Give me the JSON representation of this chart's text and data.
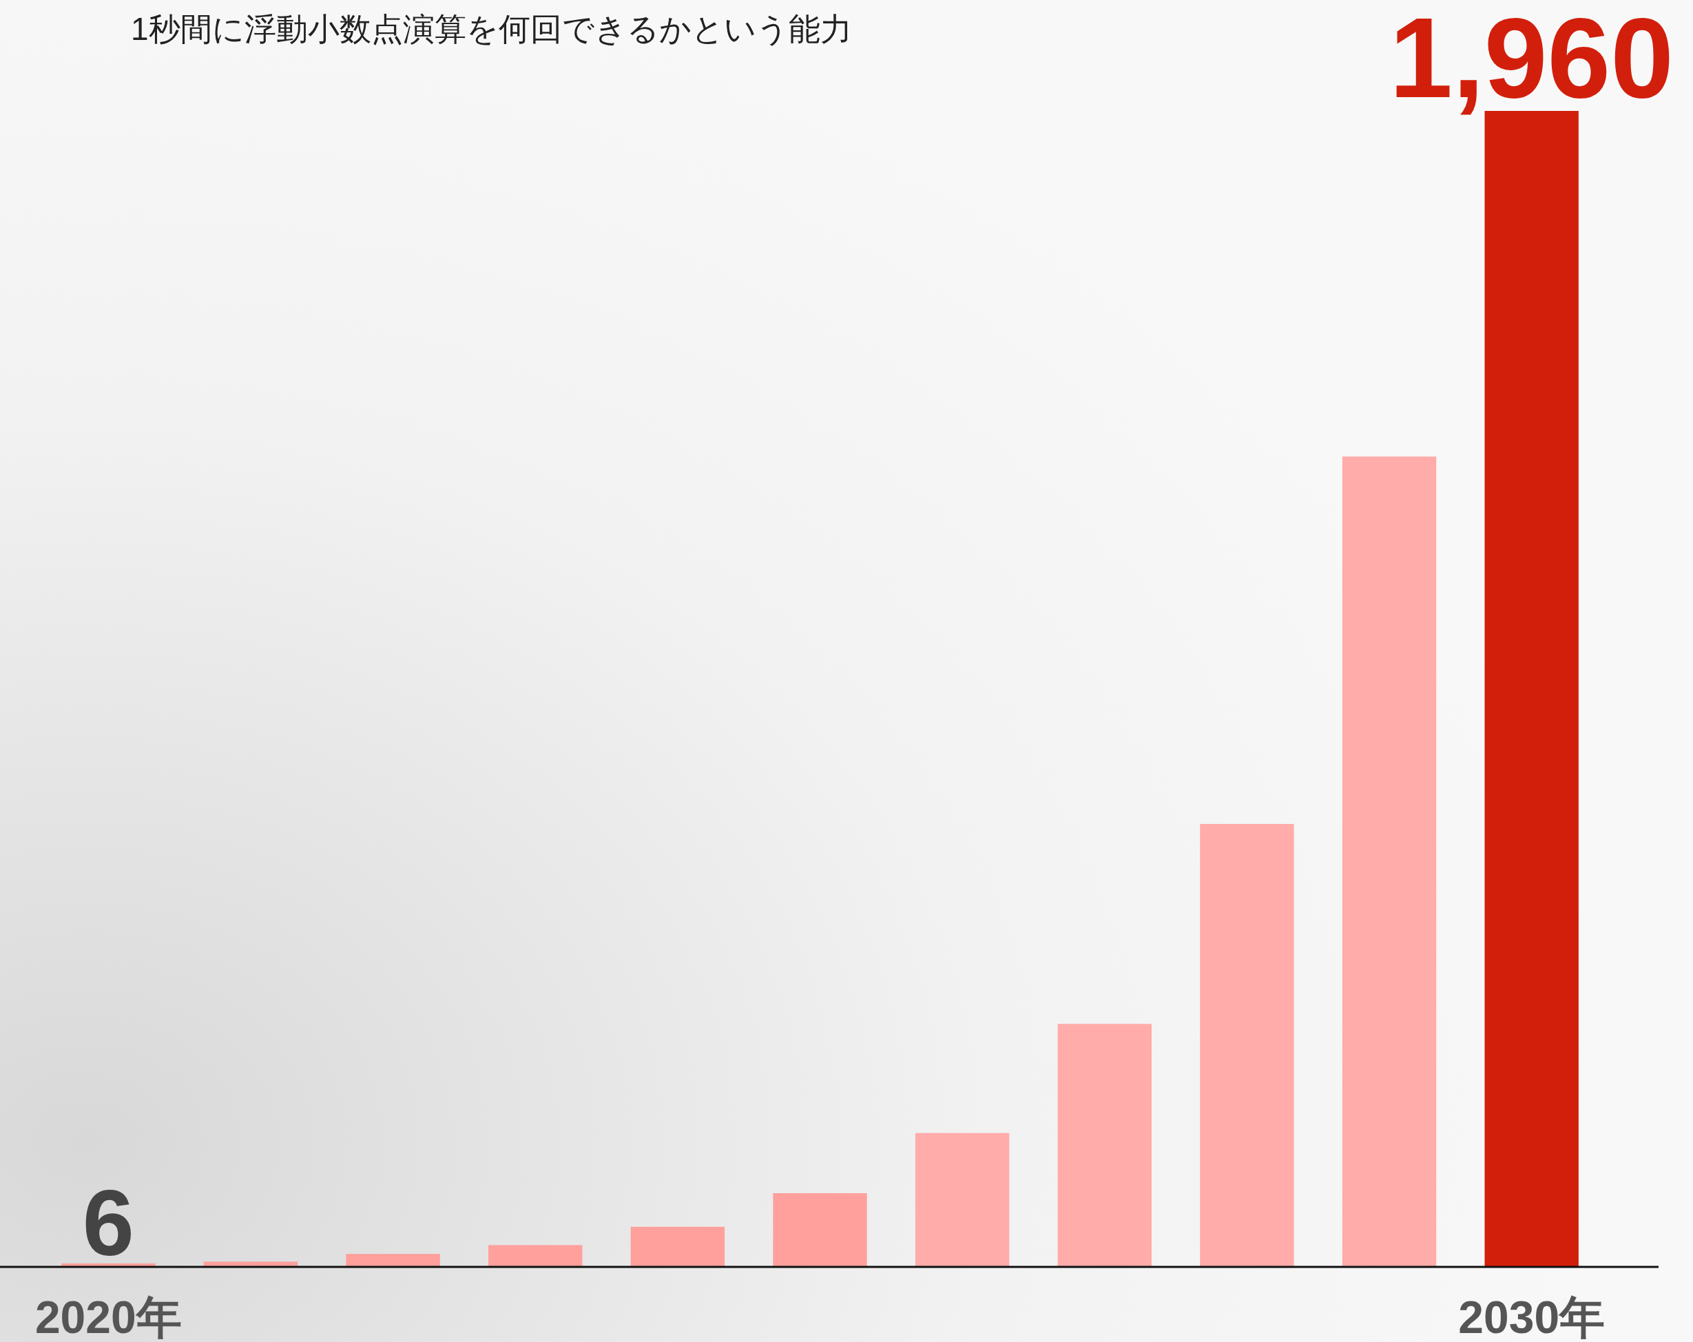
{
  "chart_data": {
    "type": "bar",
    "subtitle": "1秒間に浮動小数点演算を何回できるかという能力",
    "categories": [
      "2020年",
      null,
      null,
      null,
      null,
      null,
      null,
      null,
      null,
      null,
      "2030年"
    ],
    "values": [
      6,
      9,
      22,
      37,
      68,
      125,
      227,
      412,
      751,
      1374,
      1960
    ],
    "colors": [
      "#ffa09c",
      "#ffa09c",
      "#ffa09c",
      "#ffa09c",
      "#ffa09c",
      "#ffa09c",
      "#ffacaa",
      "#ffacaa",
      "#ffacaa",
      "#ffacaa",
      "#d21f0c"
    ],
    "value_labels": [
      "6",
      null,
      null,
      null,
      null,
      null,
      null,
      null,
      null,
      null,
      "1,960"
    ]
  }
}
